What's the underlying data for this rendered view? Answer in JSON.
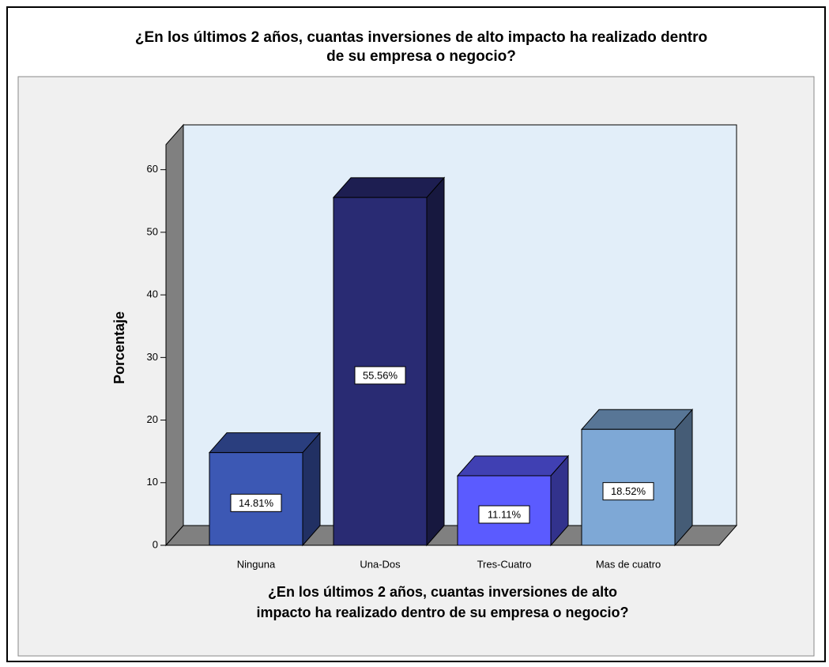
{
  "chart_data": {
    "type": "bar3d",
    "title": [
      "¿En los últimos 2 años, cuantas inversiones de alto impacto ha realizado dentro",
      "de su empresa o negocio?"
    ],
    "xlabel": [
      "¿En los últimos 2 años, cuantas inversiones de alto",
      "impacto ha realizado dentro de su empresa o negocio?"
    ],
    "ylabel": "Porcentaje",
    "categories": [
      "Ninguna",
      "Una-Dos",
      "Tres-Cuatro",
      "Mas de cuatro"
    ],
    "values": [
      14.81,
      55.56,
      11.11,
      18.52
    ],
    "value_labels": [
      "14.81%",
      "55.56%",
      "11.11%",
      "18.52%"
    ],
    "colors": [
      "#3c58b4",
      "#292b73",
      "#5b5bff",
      "#7ea8d6"
    ],
    "ylim": [
      0,
      64
    ],
    "yticks": [
      0,
      10,
      20,
      30,
      40,
      50,
      60
    ],
    "grid": false
  }
}
